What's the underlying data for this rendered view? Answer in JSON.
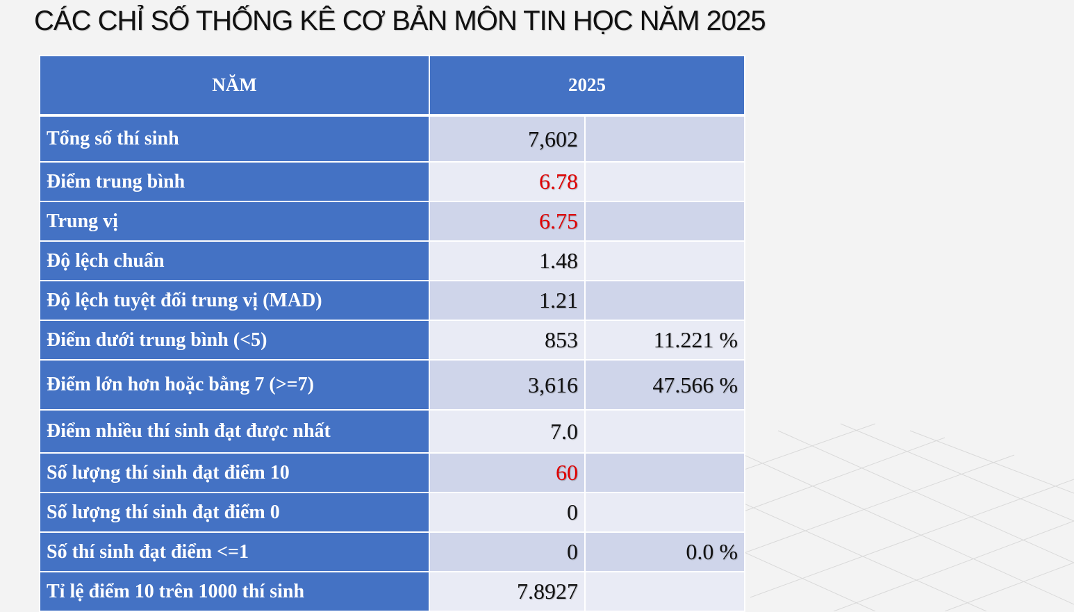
{
  "title": "CÁC CHỈ SỐ THỐNG KÊ CƠ BẢN MÔN TIN HỌC NĂM 2025",
  "colors": {
    "header_bg": "#4472c4",
    "row_odd_bg": "#cfd5ea",
    "row_even_bg": "#e9ebf5",
    "highlight_text": "#e00000"
  },
  "table": {
    "header": {
      "label": "NĂM",
      "year": "2025"
    },
    "rows": [
      {
        "label": "Tổng số thí sinh",
        "value": "7,602",
        "percent": "",
        "highlight": false
      },
      {
        "label": "Điểm trung bình",
        "value": "6.78",
        "percent": "",
        "highlight": true
      },
      {
        "label": "Trung vị",
        "value": "6.75",
        "percent": "",
        "highlight": true
      },
      {
        "label": "Độ lệch chuẩn",
        "value": "1.48",
        "percent": "",
        "highlight": false
      },
      {
        "label": "Độ lệch tuyệt đối trung vị (MAD)",
        "value": "1.21",
        "percent": "",
        "highlight": false
      },
      {
        "label": "Điểm dưới trung bình (<5)",
        "value": "853",
        "percent": "11.221 %",
        "highlight": false
      },
      {
        "label": "Điểm lớn hơn hoặc bằng 7 (>=7)",
        "value": "3,616",
        "percent": "47.566 %",
        "highlight": false
      },
      {
        "label": "Điểm nhiều thí sinh đạt được nhất",
        "value": "7.0",
        "percent": "",
        "highlight": false
      },
      {
        "label": "Số lượng thí sinh đạt điểm 10",
        "value": "60",
        "percent": "",
        "highlight": true
      },
      {
        "label": "Số lượng thí sinh đạt điểm 0",
        "value": "0",
        "percent": "",
        "highlight": false
      },
      {
        "label": "Số thí sinh đạt điểm <=1",
        "value": "0",
        "percent": "0.0 %",
        "highlight": false
      },
      {
        "label": "Tỉ lệ điểm 10 trên 1000 thí sinh",
        "value": "7.8927",
        "percent": "",
        "highlight": false
      }
    ]
  }
}
